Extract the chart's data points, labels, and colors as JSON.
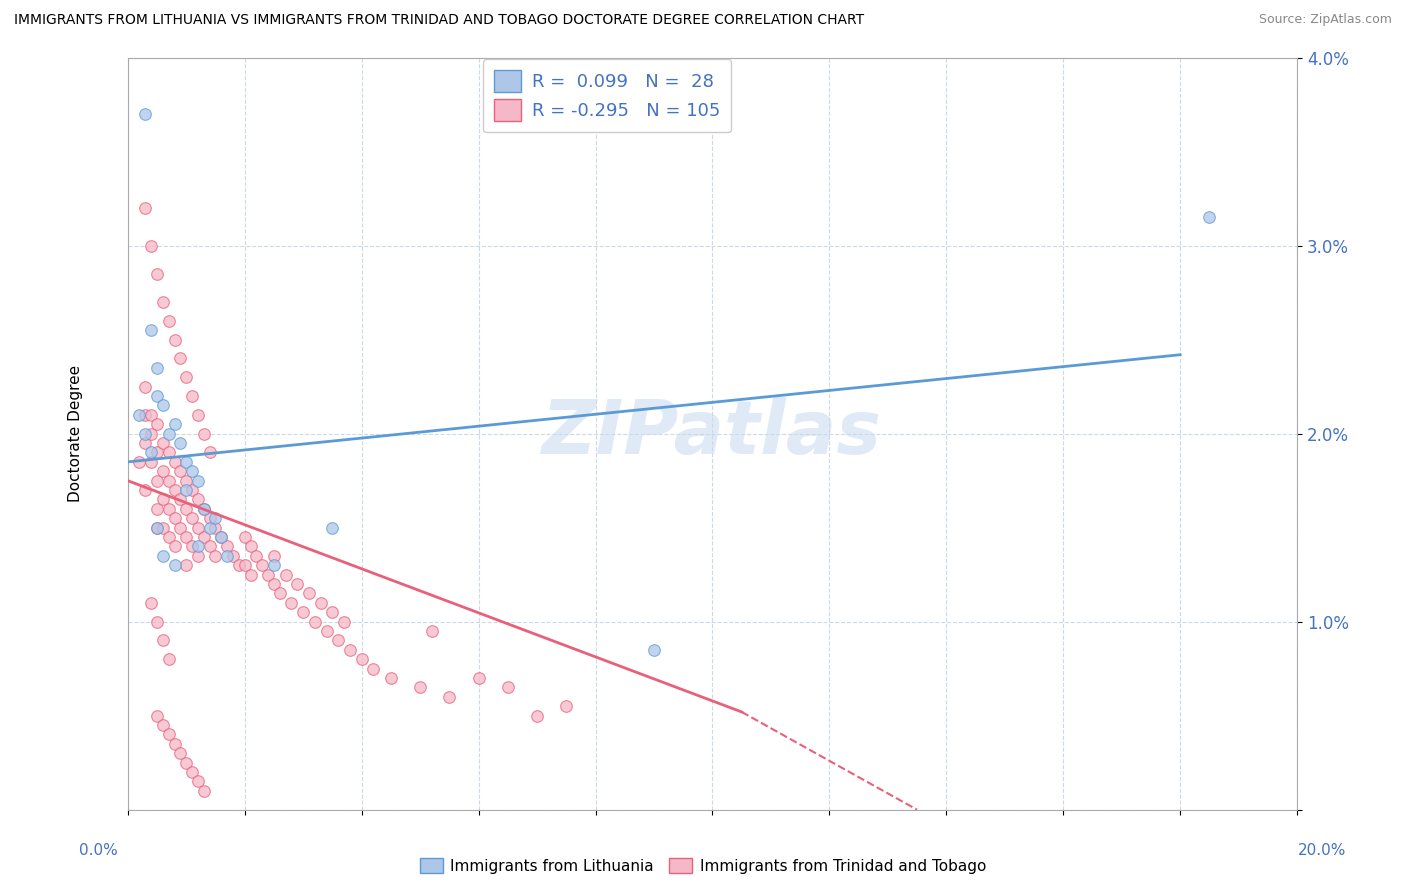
{
  "title": "IMMIGRANTS FROM LITHUANIA VS IMMIGRANTS FROM TRINIDAD AND TOBAGO DOCTORATE DEGREE CORRELATION CHART",
  "source": "Source: ZipAtlas.com",
  "ylabel": "Doctorate Degree",
  "blue_label": "Immigrants from Lithuania",
  "pink_label": "Immigrants from Trinidad and Tobago",
  "blue_r": 0.099,
  "blue_n": 28,
  "pink_r": -0.295,
  "pink_n": 105,
  "blue_color": "#aec6e8",
  "pink_color": "#f5b8c8",
  "blue_edge_color": "#5b9bd5",
  "pink_edge_color": "#e8607a",
  "blue_line_color": "#5b9bd5",
  "pink_line_color": "#e8607a",
  "watermark": "ZIPatlas",
  "xmin": 0.0,
  "xmax": 20.0,
  "ymin": 0.0,
  "ymax": 4.0,
  "blue_trend_x0": 0.0,
  "blue_trend_y0": 1.85,
  "blue_trend_x1": 18.0,
  "blue_trend_y1": 2.42,
  "pink_trend_x0": 0.0,
  "pink_trend_y0": 1.75,
  "pink_solid_x1": 10.5,
  "pink_solid_y1": 0.52,
  "pink_dash_x1": 13.5,
  "pink_dash_y1": 0.0,
  "blue_scatter_x": [
    0.3,
    0.4,
    0.5,
    0.5,
    0.6,
    0.7,
    0.8,
    0.9,
    1.0,
    1.1,
    1.2,
    1.3,
    1.4,
    1.5,
    1.6,
    1.7,
    0.2,
    0.3,
    0.4,
    0.5,
    0.6,
    0.8,
    1.0,
    1.2,
    2.5,
    3.5,
    9.0,
    18.5
  ],
  "blue_scatter_y": [
    3.7,
    2.55,
    2.35,
    2.2,
    2.15,
    2.0,
    2.05,
    1.95,
    1.85,
    1.8,
    1.75,
    1.6,
    1.5,
    1.55,
    1.45,
    1.35,
    2.1,
    2.0,
    1.9,
    1.5,
    1.35,
    1.3,
    1.7,
    1.4,
    1.3,
    1.5,
    0.85,
    3.15
  ],
  "pink_scatter_x": [
    0.2,
    0.3,
    0.3,
    0.3,
    0.3,
    0.4,
    0.4,
    0.4,
    0.5,
    0.5,
    0.5,
    0.5,
    0.5,
    0.6,
    0.6,
    0.6,
    0.6,
    0.7,
    0.7,
    0.7,
    0.7,
    0.8,
    0.8,
    0.8,
    0.8,
    0.9,
    0.9,
    0.9,
    1.0,
    1.0,
    1.0,
    1.0,
    1.1,
    1.1,
    1.1,
    1.2,
    1.2,
    1.2,
    1.3,
    1.3,
    1.4,
    1.4,
    1.5,
    1.5,
    1.6,
    1.7,
    1.8,
    1.9,
    2.0,
    2.0,
    2.1,
    2.1,
    2.2,
    2.3,
    2.4,
    2.5,
    2.5,
    2.6,
    2.7,
    2.8,
    2.9,
    3.0,
    3.1,
    3.2,
    3.3,
    3.4,
    3.5,
    3.6,
    3.7,
    3.8,
    4.0,
    4.2,
    4.5,
    5.0,
    5.2,
    5.5,
    6.0,
    6.5,
    7.0,
    7.5,
    0.3,
    0.4,
    0.5,
    0.6,
    0.7,
    0.8,
    0.9,
    1.0,
    1.1,
    1.2,
    1.3,
    1.4,
    0.5,
    0.6,
    0.7,
    0.8,
    0.9,
    1.0,
    1.1,
    1.2,
    1.3,
    0.4,
    0.5,
    0.6,
    0.7
  ],
  "pink_scatter_y": [
    1.85,
    2.25,
    2.1,
    1.95,
    1.7,
    2.1,
    2.0,
    1.85,
    2.05,
    1.9,
    1.75,
    1.6,
    1.5,
    1.95,
    1.8,
    1.65,
    1.5,
    1.9,
    1.75,
    1.6,
    1.45,
    1.85,
    1.7,
    1.55,
    1.4,
    1.8,
    1.65,
    1.5,
    1.75,
    1.6,
    1.45,
    1.3,
    1.7,
    1.55,
    1.4,
    1.65,
    1.5,
    1.35,
    1.6,
    1.45,
    1.55,
    1.4,
    1.5,
    1.35,
    1.45,
    1.4,
    1.35,
    1.3,
    1.45,
    1.3,
    1.4,
    1.25,
    1.35,
    1.3,
    1.25,
    1.2,
    1.35,
    1.15,
    1.25,
    1.1,
    1.2,
    1.05,
    1.15,
    1.0,
    1.1,
    0.95,
    1.05,
    0.9,
    1.0,
    0.85,
    0.8,
    0.75,
    0.7,
    0.65,
    0.95,
    0.6,
    0.7,
    0.65,
    0.5,
    0.55,
    3.2,
    3.0,
    2.85,
    2.7,
    2.6,
    2.5,
    2.4,
    2.3,
    2.2,
    2.1,
    2.0,
    1.9,
    0.5,
    0.45,
    0.4,
    0.35,
    0.3,
    0.25,
    0.2,
    0.15,
    0.1,
    1.1,
    1.0,
    0.9,
    0.8
  ]
}
